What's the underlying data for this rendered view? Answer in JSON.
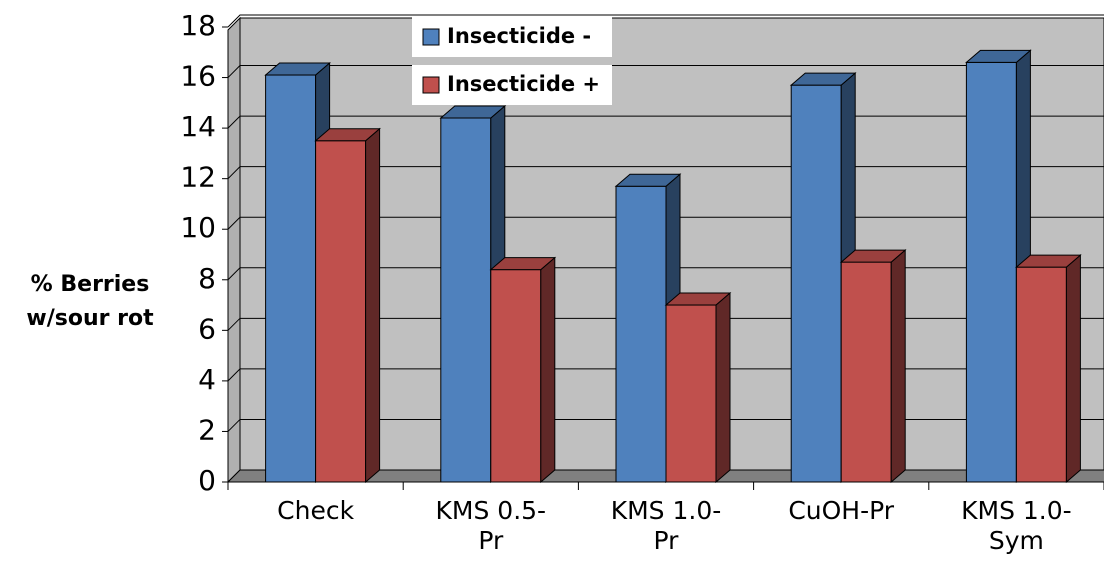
{
  "chart_data": {
    "type": "bar3d",
    "y_label": "% Berries w/sour rot",
    "categories": [
      "Check",
      "KMS 0.5-Pr",
      "KMS 1.0-Pr",
      "CuOH-Pr",
      "KMS 1.0-Sym"
    ],
    "series": [
      {
        "name": "Insecticide -",
        "color": "#4f81bd",
        "values": [
          16.1,
          14.4,
          11.7,
          15.7,
          16.6
        ]
      },
      {
        "name": "Insecticide +",
        "color": "#c0504d",
        "values": [
          13.5,
          8.4,
          7.0,
          8.7,
          8.5
        ]
      }
    ],
    "ylim": [
      0,
      18
    ],
    "yticks": [
      0,
      2,
      4,
      6,
      8,
      10,
      12,
      14,
      16,
      18
    ],
    "grid": true
  }
}
